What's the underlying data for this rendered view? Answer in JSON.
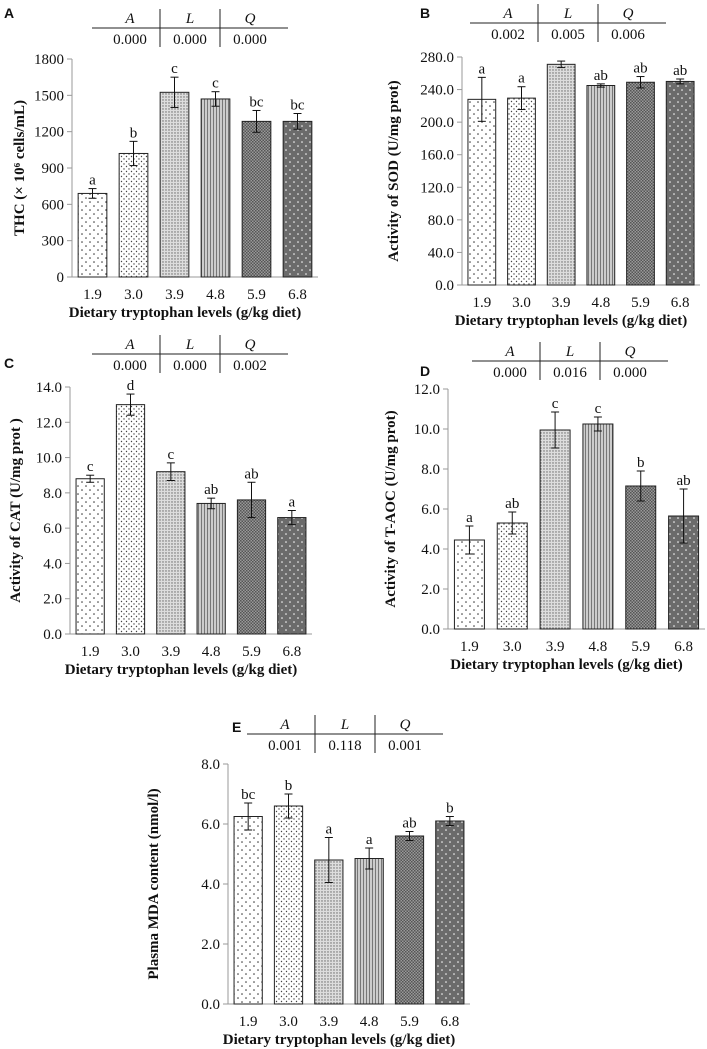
{
  "xlabel": "Dietary tryptophan levels (g/kg diet)",
  "categories": [
    "1.9",
    "3.0",
    "3.9",
    "4.8",
    "5.9",
    "6.8"
  ],
  "stats_headers": [
    "A",
    "L",
    "Q"
  ],
  "chart_data": [
    {
      "panel": "A",
      "type": "bar",
      "ylabel": "THC  (× 10⁶ cells/mL)",
      "ylim": [
        0,
        1800
      ],
      "ystep": 300,
      "ydecimals": 0,
      "categories": [
        "1.9",
        "3.0",
        "3.9",
        "4.8",
        "5.9",
        "6.8"
      ],
      "values": [
        690,
        1020,
        1525,
        1470,
        1285,
        1285
      ],
      "errors": [
        40,
        100,
        125,
        60,
        90,
        65
      ],
      "letters": [
        "a",
        "b",
        "c",
        "c",
        "bc",
        "bc"
      ],
      "stats": [
        "0.000",
        "0.000",
        "0.000"
      ],
      "grid": false
    },
    {
      "panel": "B",
      "type": "bar",
      "ylabel": "Activity  of  SOD (U/mg prot)",
      "ylim": [
        0,
        280
      ],
      "ystep": 40,
      "ydecimals": 1,
      "categories": [
        "1.9",
        "3.0",
        "3.9",
        "4.8",
        "5.9",
        "6.8"
      ],
      "values": [
        228,
        229.5,
        271,
        245,
        249,
        250
      ],
      "errors": [
        27,
        14,
        4,
        2,
        7,
        3
      ],
      "letters": [
        "a",
        "a",
        "",
        "ab",
        "ab",
        "ab"
      ],
      "stats": [
        "0.002",
        "0.005",
        "0.006"
      ],
      "grid": false
    },
    {
      "panel": "C",
      "type": "bar",
      "ylabel": "Activity  of CAT (U/mg prot )",
      "ylim": [
        0,
        14
      ],
      "ystep": 2,
      "ydecimals": 1,
      "categories": [
        "1.9",
        "3.0",
        "3.9",
        "4.8",
        "5.9",
        "6.8"
      ],
      "values": [
        8.8,
        13.0,
        9.2,
        7.4,
        7.6,
        6.6
      ],
      "errors": [
        0.2,
        0.6,
        0.5,
        0.3,
        1.0,
        0.4
      ],
      "letters": [
        "c",
        "d",
        "c",
        "ab",
        "ab",
        "a"
      ],
      "stats": [
        "0.000",
        "0.000",
        "0.002"
      ],
      "grid": false
    },
    {
      "panel": "D",
      "type": "bar",
      "ylabel": "Activity of  T-AOC (U/mg prot)",
      "ylim": [
        0,
        12
      ],
      "ystep": 2,
      "ydecimals": 1,
      "categories": [
        "1.9",
        "3.0",
        "3.9",
        "4.8",
        "5.9",
        "6.8"
      ],
      "values": [
        4.45,
        5.3,
        9.95,
        10.25,
        7.15,
        5.65
      ],
      "errors": [
        0.7,
        0.55,
        0.9,
        0.35,
        0.75,
        1.35
      ],
      "letters": [
        "a",
        "ab",
        "c",
        "c",
        "b",
        "ab"
      ],
      "stats": [
        "0.000",
        "0.016",
        "0.000"
      ],
      "grid": false
    },
    {
      "panel": "E",
      "type": "bar",
      "ylabel": "Plasma  MDA content (nmol/l)",
      "ylim": [
        0,
        8
      ],
      "ystep": 2,
      "ydecimals": 1,
      "categories": [
        "1.9",
        "3.0",
        "3.9",
        "4.8",
        "5.9",
        "6.8"
      ],
      "values": [
        6.25,
        6.6,
        4.8,
        4.85,
        5.6,
        6.1
      ],
      "errors": [
        0.45,
        0.4,
        0.75,
        0.35,
        0.15,
        0.15
      ],
      "letters": [
        "bc",
        "b",
        "a",
        "a",
        "ab",
        "b"
      ],
      "stats": [
        "0.001",
        "0.118",
        "0.001"
      ],
      "grid": false
    }
  ]
}
